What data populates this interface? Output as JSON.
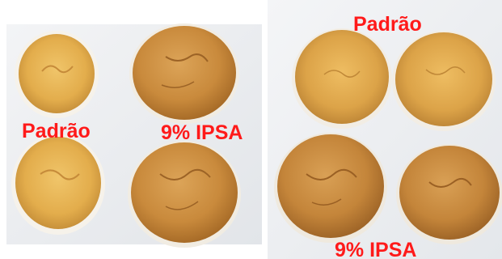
{
  "panels": {
    "left": {
      "label_standard": "Padrão",
      "label_treatment": "9% IPSA"
    },
    "right": {
      "label_standard": "Padrão",
      "label_treatment": "9% IPSA"
    }
  },
  "colors": {
    "label": "#ff1a1a",
    "cloth": "#eef0f2",
    "crust_light": "#e8b85a",
    "crust_dark": "#c0802e"
  }
}
